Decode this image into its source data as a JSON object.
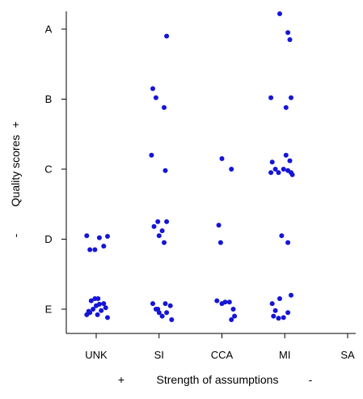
{
  "chart_data": {
    "type": "scatter",
    "x_categories": [
      "UNK",
      "SI",
      "CCA",
      "MI",
      "SA"
    ],
    "y_categories": [
      "A",
      "B",
      "C",
      "D",
      "E"
    ],
    "xlabel": {
      "left_sign": "+",
      "text": "Strength of assumptions",
      "right_sign": "-"
    },
    "ylabel": {
      "left_sign": "-",
      "text": "Quality scores",
      "right_sign": "+"
    },
    "point_color": "#1515d6",
    "note": "jittered points; each point = [x category index + jitter, y score]",
    "points": [
      [
        0.95,
        1.0
      ],
      [
        1.0,
        1.05
      ],
      [
        1.02,
        0.92
      ],
      [
        1.05,
        1.07
      ],
      [
        0.88,
        0.97
      ],
      [
        0.92,
        1.12
      ],
      [
        1.08,
        0.98
      ],
      [
        1.12,
        1.08
      ],
      [
        1.18,
        0.88
      ],
      [
        0.85,
        0.92
      ],
      [
        0.98,
        1.15
      ],
      [
        1.15,
        1.02
      ],
      [
        0.9,
        0.95
      ],
      [
        1.03,
        1.15
      ],
      [
        0.85,
        2.05
      ],
      [
        0.9,
        1.85
      ],
      [
        0.98,
        1.85
      ],
      [
        1.05,
        2.02
      ],
      [
        1.12,
        1.9
      ],
      [
        1.18,
        2.04
      ],
      [
        1.9,
        1.08
      ],
      [
        1.98,
        1.0
      ],
      [
        2.05,
        0.9
      ],
      [
        2.12,
        0.95
      ],
      [
        2.18,
        1.05
      ],
      [
        2.1,
        1.08
      ],
      [
        2.2,
        0.85
      ],
      [
        1.95,
        1.0
      ],
      [
        2.0,
        0.95
      ],
      [
        1.92,
        2.18
      ],
      [
        1.98,
        2.25
      ],
      [
        2.05,
        2.12
      ],
      [
        2.12,
        2.25
      ],
      [
        2.0,
        2.05
      ],
      [
        2.08,
        1.95
      ],
      [
        1.88,
        3.2
      ],
      [
        2.1,
        2.98
      ],
      [
        1.9,
        4.15
      ],
      [
        1.95,
        4.02
      ],
      [
        2.08,
        3.88
      ],
      [
        2.12,
        4.9
      ],
      [
        2.92,
        1.12
      ],
      [
        3.0,
        1.08
      ],
      [
        3.05,
        1.1
      ],
      [
        3.12,
        1.1
      ],
      [
        3.18,
        1.0
      ],
      [
        3.2,
        0.9
      ],
      [
        3.15,
        0.85
      ],
      [
        2.95,
        2.2
      ],
      [
        2.98,
        1.95
      ],
      [
        3.0,
        3.15
      ],
      [
        3.15,
        3.0
      ],
      [
        3.8,
        1.08
      ],
      [
        3.85,
        0.98
      ],
      [
        3.92,
        1.15
      ],
      [
        3.9,
        0.87
      ],
      [
        3.98,
        0.88
      ],
      [
        4.05,
        0.95
      ],
      [
        4.1,
        1.2
      ],
      [
        3.82,
        0.9
      ],
      [
        3.95,
        2.05
      ],
      [
        4.05,
        1.95
      ],
      [
        3.8,
        3.1
      ],
      [
        3.78,
        2.95
      ],
      [
        3.85,
        3.0
      ],
      [
        3.9,
        2.95
      ],
      [
        3.98,
        3.0
      ],
      [
        4.02,
        3.2
      ],
      [
        4.08,
        3.12
      ],
      [
        4.1,
        2.95
      ],
      [
        4.12,
        2.92
      ],
      [
        4.05,
        2.98
      ],
      [
        3.78,
        4.02
      ],
      [
        4.02,
        3.88
      ],
      [
        4.1,
        4.02
      ],
      [
        3.92,
        5.22
      ],
      [
        4.05,
        4.95
      ],
      [
        4.08,
        4.85
      ]
    ]
  }
}
